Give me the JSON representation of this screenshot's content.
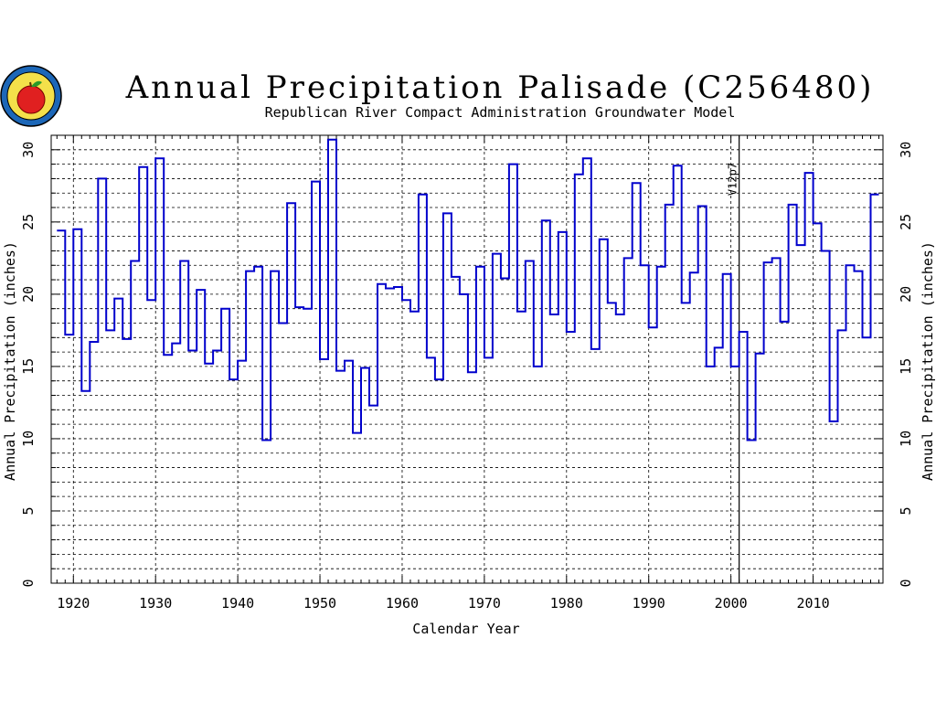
{
  "logo": {
    "name": "rrca-seal"
  },
  "chart_data": {
    "type": "line",
    "step": true,
    "title": "Annual Precipitation Palisade (C256480)",
    "subtitle": "Republican River Compact Administration Groundwater Model",
    "xlabel": "Calendar Year",
    "ylabel": "Annual Precipitation (inches)",
    "ylabel_right": "Annual Precipitation (inches)",
    "xlim": [
      1917.3,
      2018.5
    ],
    "ylim": [
      0,
      31
    ],
    "xticks": [
      1920,
      1930,
      1940,
      1950,
      1960,
      1970,
      1980,
      1990,
      2000,
      2010
    ],
    "yticks": [
      0,
      5,
      10,
      15,
      20,
      25,
      30
    ],
    "grid": true,
    "line_color": "#0000cc",
    "annotation": {
      "x": 2001,
      "text": "V12p7"
    },
    "years": [
      1918,
      1919,
      1920,
      1921,
      1922,
      1923,
      1924,
      1925,
      1926,
      1927,
      1928,
      1929,
      1930,
      1931,
      1932,
      1933,
      1934,
      1935,
      1936,
      1937,
      1938,
      1939,
      1940,
      1941,
      1942,
      1943,
      1944,
      1945,
      1946,
      1947,
      1948,
      1949,
      1950,
      1951,
      1952,
      1953,
      1954,
      1955,
      1956,
      1957,
      1958,
      1959,
      1960,
      1961,
      1962,
      1963,
      1964,
      1965,
      1966,
      1967,
      1968,
      1969,
      1970,
      1971,
      1972,
      1973,
      1974,
      1975,
      1976,
      1977,
      1978,
      1979,
      1980,
      1981,
      1982,
      1983,
      1984,
      1985,
      1986,
      1987,
      1988,
      1989,
      1990,
      1991,
      1992,
      1993,
      1994,
      1995,
      1996,
      1997,
      1998,
      1999,
      2000,
      2001,
      2002,
      2003,
      2004,
      2005,
      2006,
      2007,
      2008,
      2009,
      2010,
      2011,
      2012,
      2013,
      2014,
      2015,
      2016,
      2017
    ],
    "values": [
      24.4,
      17.2,
      24.5,
      13.3,
      16.7,
      28.0,
      17.5,
      19.7,
      16.9,
      22.3,
      28.8,
      19.6,
      29.4,
      15.8,
      16.6,
      22.3,
      16.1,
      20.3,
      15.2,
      16.1,
      19.0,
      14.1,
      15.4,
      21.6,
      21.9,
      9.9,
      21.6,
      18.0,
      26.3,
      19.1,
      19.0,
      27.8,
      15.5,
      30.7,
      14.7,
      15.4,
      10.4,
      14.9,
      12.3,
      20.7,
      20.4,
      20.5,
      19.6,
      18.8,
      26.9,
      15.6,
      14.1,
      25.6,
      21.2,
      20.0,
      14.6,
      21.9,
      15.6,
      22.8,
      21.1,
      29.0,
      18.8,
      22.3,
      15.0,
      25.1,
      18.6,
      24.3,
      17.4,
      28.3,
      29.4,
      16.2,
      23.8,
      19.4,
      18.6,
      22.5,
      27.7,
      22.0,
      17.7,
      21.9,
      26.2,
      28.9,
      19.4,
      21.5,
      26.1,
      15.0,
      16.3,
      21.4,
      15.0,
      17.4,
      9.9,
      15.9,
      22.2,
      22.5,
      18.1,
      26.2,
      23.4,
      28.4,
      24.9,
      23.0,
      11.2,
      17.5,
      22.0,
      21.6,
      17.0,
      26.9
    ]
  }
}
